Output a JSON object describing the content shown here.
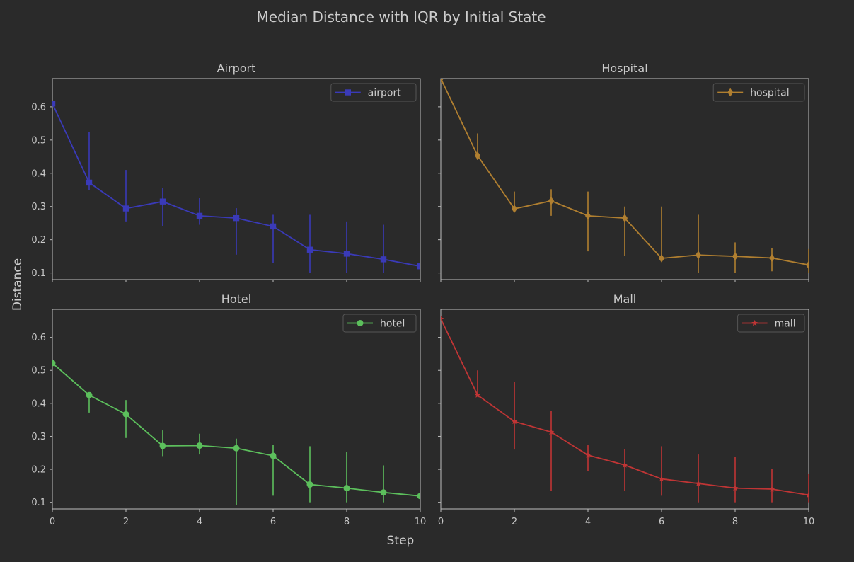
{
  "chart_data": {
    "type": "line",
    "title": "Median Distance with IQR by Initial State",
    "xlabel": "Step",
    "ylabel": "Distance",
    "xlim": [
      0,
      10
    ],
    "ylim": [
      0.08,
      0.685
    ],
    "x_ticks": [
      0,
      2,
      4,
      6,
      8,
      10
    ],
    "y_ticks": [
      0.1,
      0.2,
      0.3,
      0.4,
      0.5,
      0.6
    ],
    "panels": [
      {
        "title": "Airport",
        "legend": "airport",
        "color": "#3a3ab8",
        "marker": "square",
        "x": [
          0,
          1,
          2,
          3,
          4,
          5,
          6,
          7,
          8,
          9,
          10
        ],
        "median": [
          0.61,
          0.372,
          0.294,
          0.315,
          0.272,
          0.265,
          0.24,
          0.17,
          0.158,
          0.141,
          0.12
        ],
        "q1": [
          0.61,
          0.35,
          0.255,
          0.24,
          0.245,
          0.155,
          0.13,
          0.1,
          0.1,
          0.1,
          0.1
        ],
        "q3": [
          0.61,
          0.525,
          0.41,
          0.355,
          0.325,
          0.295,
          0.275,
          0.275,
          0.255,
          0.245,
          0.2
        ]
      },
      {
        "title": "Hospital",
        "legend": "hospital",
        "color": "#b07f30",
        "marker": "diamond",
        "x": [
          0,
          1,
          2,
          3,
          4,
          5,
          6,
          7,
          8,
          9,
          10
        ],
        "median": [
          0.685,
          0.453,
          0.293,
          0.317,
          0.272,
          0.265,
          0.144,
          0.154,
          0.15,
          0.145,
          0.124
        ],
        "q1": [
          0.685,
          0.44,
          0.29,
          0.272,
          0.165,
          0.152,
          0.144,
          0.1,
          0.1,
          0.105,
          0.1
        ],
        "q3": [
          0.685,
          0.52,
          0.345,
          0.352,
          0.345,
          0.3,
          0.3,
          0.275,
          0.192,
          0.175,
          0.172
        ]
      },
      {
        "title": "Hotel",
        "legend": "hotel",
        "color": "#5cbf5c",
        "marker": "circle",
        "x": [
          0,
          1,
          2,
          3,
          4,
          5,
          6,
          7,
          8,
          9,
          10
        ],
        "median": [
          0.522,
          0.425,
          0.367,
          0.271,
          0.272,
          0.264,
          0.241,
          0.154,
          0.143,
          0.13,
          0.119
        ],
        "q1": [
          0.522,
          0.372,
          0.295,
          0.24,
          0.245,
          0.092,
          0.12,
          0.1,
          0.1,
          0.1,
          0.1
        ],
        "q3": [
          0.522,
          0.425,
          0.41,
          0.318,
          0.308,
          0.293,
          0.275,
          0.27,
          0.253,
          0.212,
          0.17
        ]
      },
      {
        "title": "Mall",
        "legend": "mall",
        "color": "#c03535",
        "marker": "star",
        "x": [
          0,
          1,
          2,
          3,
          4,
          5,
          6,
          7,
          8,
          9,
          10
        ],
        "median": [
          0.656,
          0.425,
          0.345,
          0.313,
          0.243,
          0.213,
          0.171,
          0.157,
          0.143,
          0.14,
          0.122
        ],
        "q1": [
          0.656,
          0.425,
          0.26,
          0.135,
          0.195,
          0.135,
          0.12,
          0.1,
          0.1,
          0.1,
          0.1
        ],
        "q3": [
          0.656,
          0.5,
          0.465,
          0.378,
          0.273,
          0.262,
          0.27,
          0.245,
          0.238,
          0.202,
          0.185
        ]
      }
    ]
  }
}
